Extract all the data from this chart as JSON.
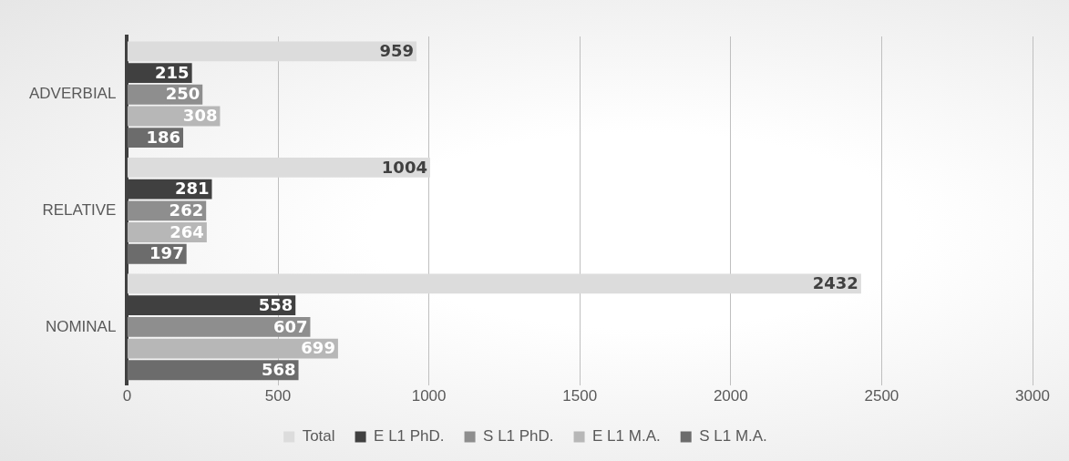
{
  "chart_data": {
    "type": "bar",
    "orientation": "horizontal",
    "categories": [
      "ADVERBIAL",
      "RELATIVE",
      "NOMINAL"
    ],
    "series": [
      {
        "name": "Total",
        "color": "#dcdcdc",
        "values": [
          959,
          1004,
          2432
        ]
      },
      {
        "name": "E L1 PhD.",
        "color": "#404040",
        "values": [
          215,
          281,
          558
        ]
      },
      {
        "name": "S L1 PhD.",
        "color": "#8e8e8e",
        "values": [
          250,
          262,
          607
        ]
      },
      {
        "name": "E L1 M.A.",
        "color": "#b7b7b7",
        "values": [
          308,
          264,
          699
        ]
      },
      {
        "name": "S L1 M.A.",
        "color": "#6c6c6c",
        "values": [
          186,
          197,
          568
        ]
      }
    ],
    "xlim": [
      0,
      3000
    ],
    "xticks": [
      0,
      500,
      1000,
      1500,
      2000,
      2500,
      3000
    ],
    "grid": "x",
    "legend": "bottom",
    "data_labels": true
  }
}
